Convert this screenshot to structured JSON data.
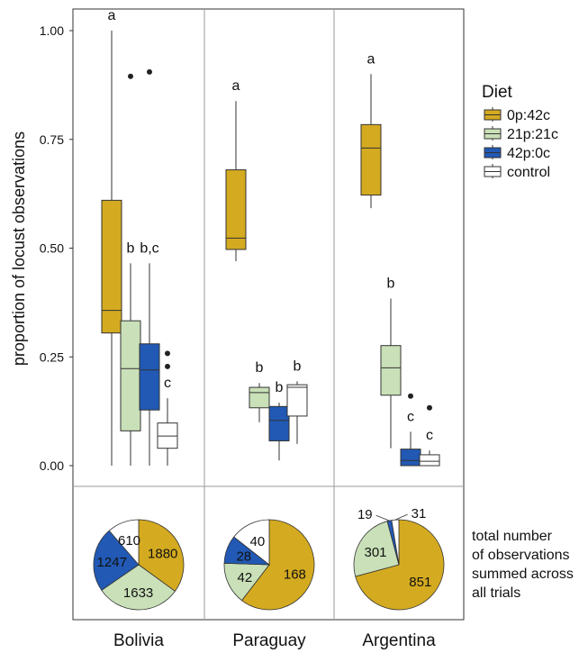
{
  "chart_data": {
    "type": "boxplot",
    "ylabel": "proportion of locust observations",
    "yticks": [
      "0.00",
      "0.25",
      "0.50",
      "0.75",
      "1.00"
    ],
    "ylim": [
      -0.03,
      1.05
    ],
    "grid": false,
    "legend": {
      "title": "Diet",
      "placement": "right",
      "entries": [
        "0p:42c",
        "21p:21c",
        "42p:0c",
        "control"
      ]
    },
    "colors": {
      "0p:42c": "#D4AA20",
      "21p:21c": "#C9E0B8",
      "42p:0c": "#2159B4",
      "control": "#FFFFFF"
    },
    "countries": [
      {
        "name": "Bolivia",
        "boxes": [
          {
            "diet": "0p:42c",
            "min": 0.0,
            "q1": 0.305,
            "median": 0.357,
            "q3": 0.61,
            "max": 1.0,
            "outliers": [],
            "letter": "a"
          },
          {
            "diet": "21p:21c",
            "min": 0.0,
            "q1": 0.08,
            "median": 0.223,
            "q3": 0.333,
            "max": 0.465,
            "outliers": [
              0.895
            ],
            "letter": "b"
          },
          {
            "diet": "42p:0c",
            "min": 0.0,
            "q1": 0.128,
            "median": 0.22,
            "q3": 0.28,
            "max": 0.465,
            "outliers": [
              0.905
            ],
            "letter": "b,c"
          },
          {
            "diet": "control",
            "min": 0.0,
            "q1": 0.04,
            "median": 0.068,
            "q3": 0.098,
            "max": 0.155,
            "outliers": [
              0.228,
              0.258
            ],
            "letter": "c"
          }
        ],
        "pie": [
          {
            "diet": "0p:42c",
            "label": "1880",
            "value": 1880
          },
          {
            "diet": "21p:21c",
            "label": "1633",
            "value": 1633
          },
          {
            "diet": "42p:0c",
            "label": "1247",
            "value": 1247
          },
          {
            "diet": "control",
            "label": "610",
            "value": 610
          }
        ]
      },
      {
        "name": "Paraguay",
        "boxes": [
          {
            "diet": "0p:42c",
            "min": 0.47,
            "q1": 0.497,
            "median": 0.523,
            "q3": 0.68,
            "max": 0.838,
            "outliers": [],
            "letter": "a"
          },
          {
            "diet": "21p:21c",
            "min": 0.1,
            "q1": 0.133,
            "median": 0.168,
            "q3": 0.18,
            "max": 0.19,
            "outliers": [],
            "letter": "b"
          },
          {
            "diet": "42p:0c",
            "min": 0.012,
            "q1": 0.057,
            "median": 0.104,
            "q3": 0.136,
            "max": 0.145,
            "outliers": [],
            "letter": "b"
          },
          {
            "diet": "control",
            "min": 0.05,
            "q1": 0.114,
            "median": 0.18,
            "q3": 0.186,
            "max": 0.194,
            "outliers": [],
            "letter": "b"
          }
        ],
        "pie": [
          {
            "diet": "0p:42c",
            "label": "168",
            "value": 168
          },
          {
            "diet": "21p:21c",
            "label": "42",
            "value": 42
          },
          {
            "diet": "42p:0c",
            "label": "28",
            "value": 28
          },
          {
            "diet": "control",
            "label": "40",
            "value": 40
          }
        ]
      },
      {
        "name": "Argentina",
        "boxes": [
          {
            "diet": "0p:42c",
            "min": 0.592,
            "q1": 0.622,
            "median": 0.73,
            "q3": 0.784,
            "max": 0.9,
            "outliers": [],
            "letter": "a"
          },
          {
            "diet": "21p:21c",
            "min": 0.04,
            "q1": 0.162,
            "median": 0.225,
            "q3": 0.276,
            "max": 0.384,
            "outliers": [],
            "letter": "b"
          },
          {
            "diet": "42p:0c",
            "min": 0.0,
            "q1": 0.0,
            "median": 0.012,
            "q3": 0.038,
            "max": 0.078,
            "outliers": [
              0.16
            ],
            "letter": "c"
          },
          {
            "diet": "control",
            "min": 0.0,
            "q1": 0.0,
            "median": 0.01,
            "q3": 0.025,
            "max": 0.035,
            "outliers": [
              0.133
            ],
            "letter": "c"
          }
        ],
        "pie": [
          {
            "diet": "0p:42c",
            "label": "851",
            "value": 851
          },
          {
            "diet": "21p:21c",
            "label": "301",
            "value": 301
          },
          {
            "diet": "42p:0c",
            "label": "19",
            "value": 19
          },
          {
            "diet": "control",
            "label": "31",
            "value": 31
          }
        ]
      }
    ],
    "pie_note": [
      "total number",
      "of observations",
      "summed across",
      "all trials"
    ]
  }
}
